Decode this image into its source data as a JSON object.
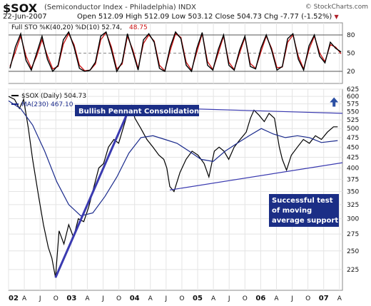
{
  "header": {
    "symbol": "$SOX",
    "name": "(Semiconductor Index - Philadelphia)",
    "exchange": "INDX",
    "watermark": "© StockCharts.com",
    "date": "22-Jun-2007",
    "open_label": "Open",
    "open": "512.09",
    "high_label": "High",
    "high": "512.09",
    "low_label": "Low",
    "low": "503.12",
    "close_label": "Close",
    "close": "504.73",
    "chg_label": "Chg",
    "chg": "-7.77 (-1.52%)"
  },
  "colors": {
    "price": "#000000",
    "ma": "#1a2a8c",
    "stoch_k": "#000000",
    "stoch_d": "#cc1111",
    "trend": "#3a3ab0",
    "arrow": "#2b4fa3",
    "label_box": "#1b2e86"
  },
  "chart_data": [
    {
      "type": "line",
      "panel": "stochastic",
      "legend": "Full STO %K(40,20) %D(10) 52.74, 48.75",
      "legend_text": "Full STO %K(40,20) %D(10) 52.74,",
      "legend_d_value": "48.75",
      "ylim": [
        0,
        100
      ],
      "yticks": [
        20,
        50,
        80
      ],
      "reference_lines": [
        20,
        50,
        80
      ],
      "series": [
        {
          "name": "%K",
          "y": [
            25,
            60,
            82,
            38,
            22,
            50,
            78,
            40,
            20,
            30,
            72,
            85,
            60,
            25,
            20,
            22,
            35,
            78,
            85,
            55,
            20,
            35,
            82,
            52,
            22,
            72,
            82,
            68,
            25,
            20,
            60,
            85,
            74,
            30,
            20,
            58,
            84,
            30,
            22,
            56,
            80,
            30,
            22,
            55,
            78,
            28,
            24,
            58,
            80,
            55,
            22,
            28,
            74,
            82,
            40,
            22,
            62,
            80,
            45,
            34,
            68,
            58,
            52
          ]
        },
        {
          "name": "%D",
          "y": [
            28,
            52,
            78,
            45,
            25,
            45,
            72,
            46,
            24,
            28,
            65,
            82,
            64,
            30,
            21,
            22,
            32,
            72,
            84,
            60,
            24,
            32,
            78,
            56,
            25,
            66,
            80,
            70,
            30,
            21,
            54,
            82,
            76,
            35,
            22,
            52,
            82,
            36,
            23,
            50,
            78,
            35,
            23,
            50,
            76,
            33,
            25,
            52,
            78,
            58,
            26,
            27,
            68,
            80,
            45,
            24,
            56,
            78,
            50,
            36,
            64,
            60,
            49
          ]
        }
      ]
    },
    {
      "type": "line",
      "panel": "price",
      "legend_price": "$SOX (Daily) 504.73",
      "legend_ma": "MA(230) 467.10",
      "ylim": [
        200,
        625
      ],
      "log_scale": true,
      "yticks": [
        225,
        250,
        275,
        300,
        325,
        350,
        375,
        400,
        425,
        450,
        475,
        500,
        525,
        550,
        575,
        600,
        625
      ],
      "xticks": [
        "02",
        "A",
        "J",
        "O",
        "03",
        "A",
        "J",
        "O",
        "04",
        "A",
        "J",
        "O",
        "05",
        "A",
        "J",
        "O",
        "06",
        "A",
        "J",
        "O",
        "07",
        "A"
      ],
      "series": [
        {
          "name": "$SOX",
          "x": [
            2002.0,
            2002.1,
            2002.18,
            2002.25,
            2002.33,
            2002.4,
            2002.5,
            2002.58,
            2002.66,
            2002.72,
            2002.78,
            2002.84,
            2002.92,
            2003.0,
            2003.08,
            2003.16,
            2003.25,
            2003.33,
            2003.42,
            2003.5,
            2003.58,
            2003.66,
            2003.75,
            2003.83,
            2003.92,
            2004.0,
            2004.04,
            2004.1,
            2004.2,
            2004.3,
            2004.4,
            2004.5,
            2004.58,
            2004.63,
            2004.68,
            2004.75,
            2004.85,
            2004.95,
            2005.05,
            2005.15,
            2005.25,
            2005.33,
            2005.42,
            2005.5,
            2005.58,
            2005.66,
            2005.75,
            2005.85,
            2005.95,
            2006.02,
            2006.08,
            2006.16,
            2006.25,
            2006.33,
            2006.42,
            2006.5,
            2006.55,
            2006.62,
            2006.7,
            2006.8,
            2006.9,
            2007.0,
            2007.1,
            2007.2,
            2007.3,
            2007.4,
            2007.47
          ],
          "y": [
            600,
            590,
            560,
            590,
            500,
            420,
            340,
            290,
            255,
            240,
            215,
            280,
            260,
            290,
            270,
            300,
            295,
            320,
            360,
            400,
            410,
            450,
            470,
            460,
            510,
            560,
            570,
            530,
            500,
            470,
            450,
            430,
            420,
            400,
            360,
            350,
            390,
            420,
            440,
            430,
            410,
            380,
            440,
            450,
            440,
            420,
            450,
            470,
            490,
            530,
            555,
            540,
            520,
            545,
            530,
            450,
            420,
            395,
            430,
            450,
            470,
            460,
            480,
            470,
            490,
            505,
            505
          ]
        },
        {
          "name": "MA(230)",
          "x": [
            2002.0,
            2002.2,
            2002.4,
            2002.6,
            2002.8,
            2003.0,
            2003.2,
            2003.4,
            2003.6,
            2003.8,
            2004.0,
            2004.2,
            2004.4,
            2004.6,
            2004.8,
            2005.0,
            2005.2,
            2005.4,
            2005.6,
            2005.8,
            2006.0,
            2006.2,
            2006.4,
            2006.6,
            2006.8,
            2007.0,
            2007.2,
            2007.47
          ],
          "y": [
            585,
            560,
            510,
            440,
            370,
            325,
            305,
            310,
            340,
            380,
            435,
            475,
            480,
            470,
            460,
            440,
            420,
            415,
            440,
            460,
            480,
            500,
            485,
            475,
            480,
            475,
            462,
            467
          ]
        }
      ],
      "annotations": [
        {
          "text": "Bullish Pennant Consolidation"
        },
        {
          "text": "Successful test\nof moving\naverage support"
        }
      ],
      "trendlines": [
        {
          "from": [
            2002.78,
            215
          ],
          "to": [
            2004.02,
            565
          ]
        },
        {
          "from": [
            2004.02,
            565
          ],
          "to": [
            2007.55,
            545
          ]
        },
        {
          "from": [
            2004.68,
            353
          ],
          "to": [
            2007.55,
            412
          ]
        }
      ],
      "arrow": {
        "x": 2007.41,
        "y": 580,
        "direction": "up"
      }
    }
  ]
}
